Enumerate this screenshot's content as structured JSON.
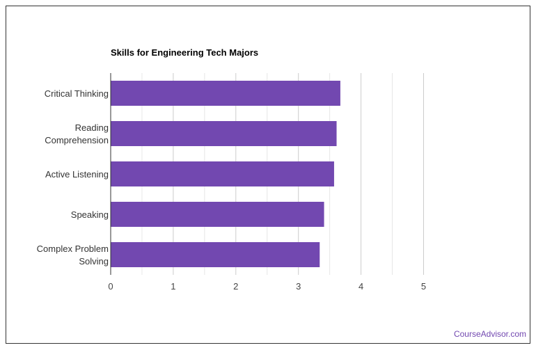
{
  "chart_data": {
    "type": "bar",
    "orientation": "horizontal",
    "title": "Skills for Engineering Tech Majors",
    "categories": [
      [
        "Critical Thinking"
      ],
      [
        "Reading",
        "Comprehension"
      ],
      [
        "Active Listening"
      ],
      [
        "Speaking"
      ],
      [
        "Complex Problem",
        "Solving"
      ]
    ],
    "values": [
      3.67,
      3.61,
      3.57,
      3.41,
      3.34
    ],
    "xlim": [
      0,
      5
    ],
    "xticks": [
      "0",
      "1",
      "2",
      "3",
      "4",
      "5"
    ],
    "grid": true,
    "bar_color": "#7248b0"
  },
  "credit": "CourseAdvisor.com"
}
